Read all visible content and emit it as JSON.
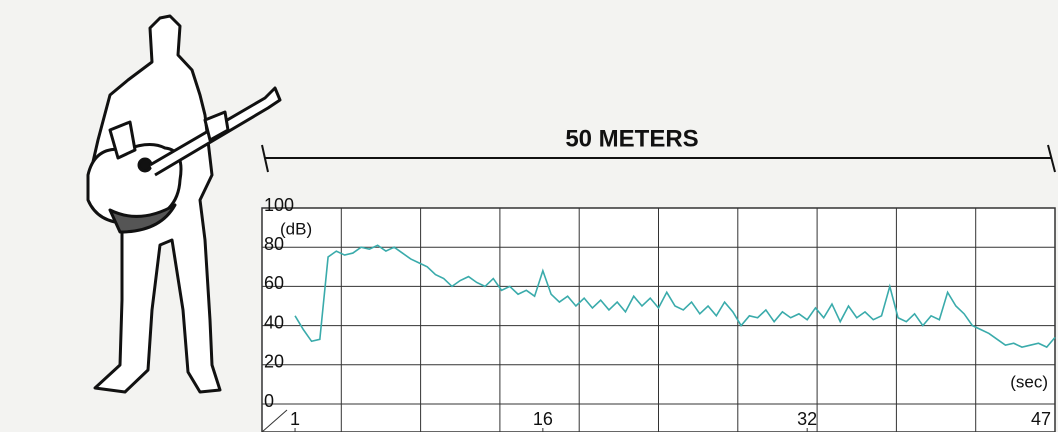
{
  "chart_data": {
    "type": "line",
    "annotation": "50 METERS",
    "y_label": "(dB)",
    "x_label": "(sec)",
    "xlim": [
      -1,
      47
    ],
    "xticks": [
      1,
      16,
      32,
      47
    ],
    "ylim": [
      0,
      100
    ],
    "yticks": [
      0,
      20,
      40,
      60,
      80,
      100
    ],
    "grid": true,
    "x": [
      1,
      1.5,
      2,
      2.5,
      3,
      3.5,
      4,
      4.5,
      5,
      5.5,
      6,
      6.5,
      7,
      7.5,
      8,
      8.5,
      9,
      9.5,
      10,
      10.5,
      11,
      11.5,
      12,
      12.5,
      13,
      13.5,
      14,
      14.5,
      15,
      15.5,
      16,
      16.5,
      17,
      17.5,
      18,
      18.5,
      19,
      19.5,
      20,
      20.5,
      21,
      21.5,
      22,
      22.5,
      23,
      23.5,
      24,
      24.5,
      25,
      25.5,
      26,
      26.5,
      27,
      27.5,
      28,
      28.5,
      29,
      29.5,
      30,
      30.5,
      31,
      31.5,
      32,
      32.5,
      33,
      33.5,
      34,
      34.5,
      35,
      35.5,
      36,
      36.5,
      37,
      37.5,
      38,
      38.5,
      39,
      39.5,
      40,
      40.5,
      41,
      41.5,
      42,
      42.5,
      43,
      43.5,
      44,
      44.5,
      45,
      45.5,
      46,
      46.5,
      47
    ],
    "series": [
      {
        "color": "#3aabab",
        "values": [
          45,
          38,
          32,
          33,
          75,
          78,
          76,
          77,
          80,
          79,
          81,
          78,
          80,
          77,
          74,
          72,
          70,
          66,
          64,
          60,
          63,
          65,
          62,
          60,
          64,
          58,
          60,
          56,
          58,
          55,
          68,
          56,
          52,
          55,
          50,
          54,
          49,
          53,
          48,
          52,
          47,
          55,
          50,
          54,
          49,
          57,
          50,
          48,
          52,
          46,
          50,
          45,
          52,
          47,
          40,
          45,
          44,
          48,
          42,
          47,
          44,
          46,
          43,
          49,
          44,
          51,
          42,
          50,
          44,
          47,
          43,
          45,
          60,
          44,
          42,
          46,
          40,
          45,
          43,
          57,
          50,
          46,
          40,
          38,
          36,
          33,
          30,
          31,
          29,
          30,
          31,
          29,
          34
        ]
      }
    ]
  }
}
